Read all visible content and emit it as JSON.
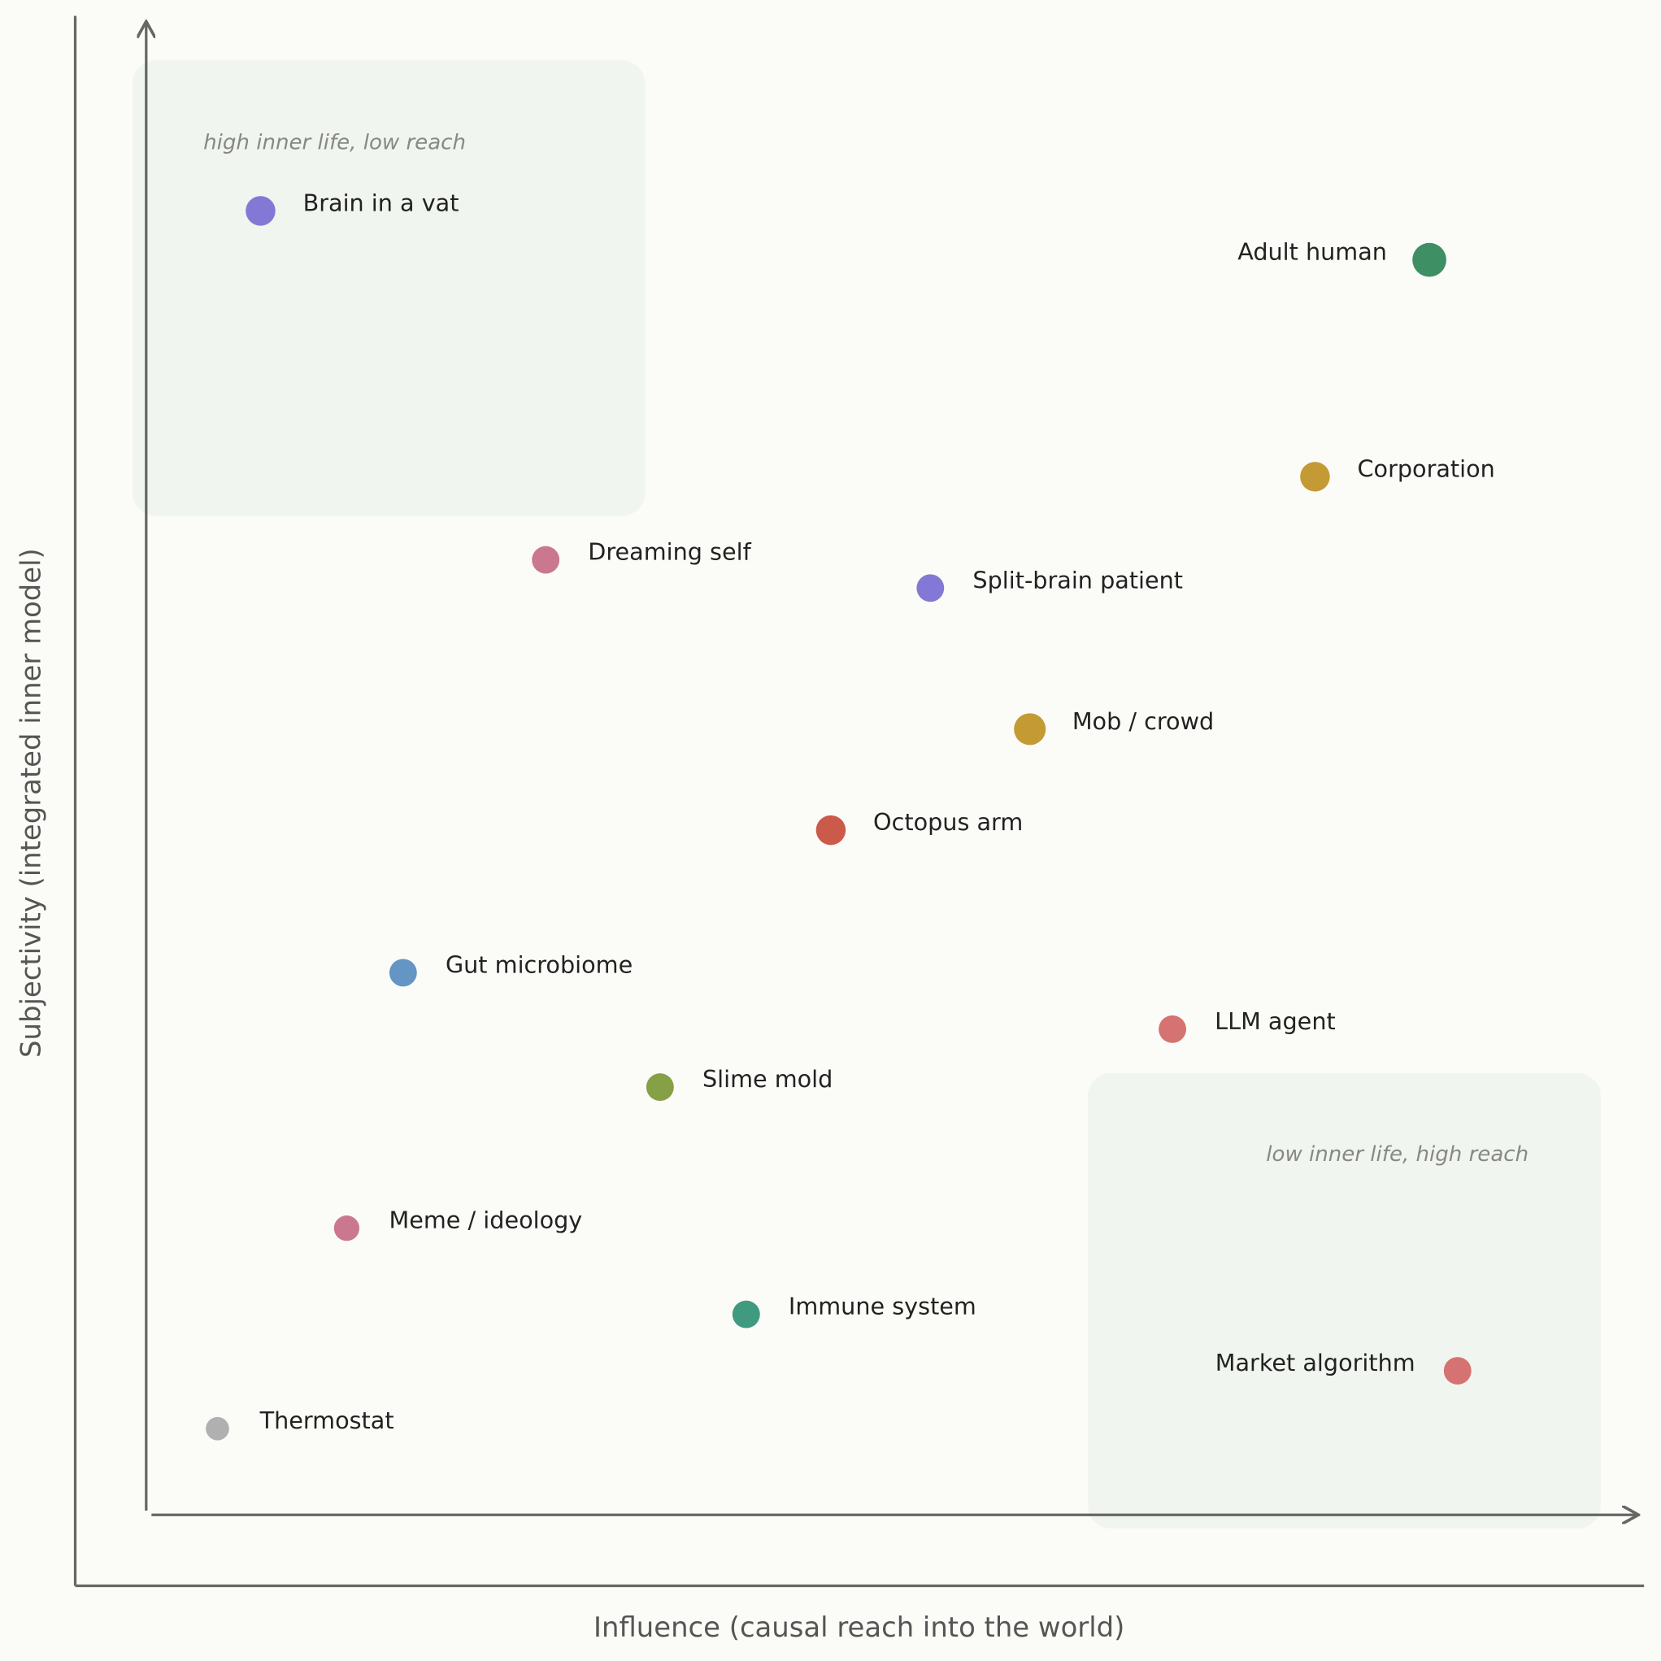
{
  "chart_data": {
    "type": "scatter",
    "title": "",
    "xlabel": "Influence  (causal reach into the world)",
    "ylabel": "Subjectivity  (integrated inner model)",
    "xlim": [
      0,
      10
    ],
    "ylim": [
      0,
      10
    ],
    "grid": false,
    "annotations": [
      {
        "text": "high inner life, low reach",
        "region": "top-left"
      },
      {
        "text": "low inner life, high reach",
        "region": "bottom-right"
      }
    ],
    "points": [
      {
        "label": "Brain in a vat",
        "x": 0.77,
        "y": 8.78,
        "color": "#8478d6"
      },
      {
        "label": "Adult human",
        "x": 8.64,
        "y": 8.45,
        "color": "#3f8f65"
      },
      {
        "label": "Corporation",
        "x": 7.87,
        "y": 6.99,
        "color": "#c49a35"
      },
      {
        "label": "Dreaming self",
        "x": 2.69,
        "y": 6.43,
        "color": "#c97890"
      },
      {
        "label": "Split-brain patient",
        "x": 5.28,
        "y": 6.24,
        "color": "#8478d6"
      },
      {
        "label": "Mob / crowd",
        "x": 5.95,
        "y": 5.29,
        "color": "#c49a35"
      },
      {
        "label": "Octopus arm",
        "x": 4.61,
        "y": 4.61,
        "color": "#cc5a4a"
      },
      {
        "label": "Gut microbiome",
        "x": 1.73,
        "y": 3.65,
        "color": "#6495c4"
      },
      {
        "label": "LLM agent",
        "x": 6.91,
        "y": 3.27,
        "color": "#d57272"
      },
      {
        "label": "Slime mold",
        "x": 3.46,
        "y": 2.88,
        "color": "#85a045"
      },
      {
        "label": "Meme / ideology",
        "x": 1.35,
        "y": 1.93,
        "color": "#c97890"
      },
      {
        "label": "Immune system",
        "x": 4.04,
        "y": 1.35,
        "color": "#3f9a80"
      },
      {
        "label": "Market algorithm",
        "x": 8.83,
        "y": 0.97,
        "color": "#d57272"
      },
      {
        "label": "Thermostat",
        "x": 0.48,
        "y": 0.58,
        "color": "#b0b0b0"
      }
    ]
  }
}
